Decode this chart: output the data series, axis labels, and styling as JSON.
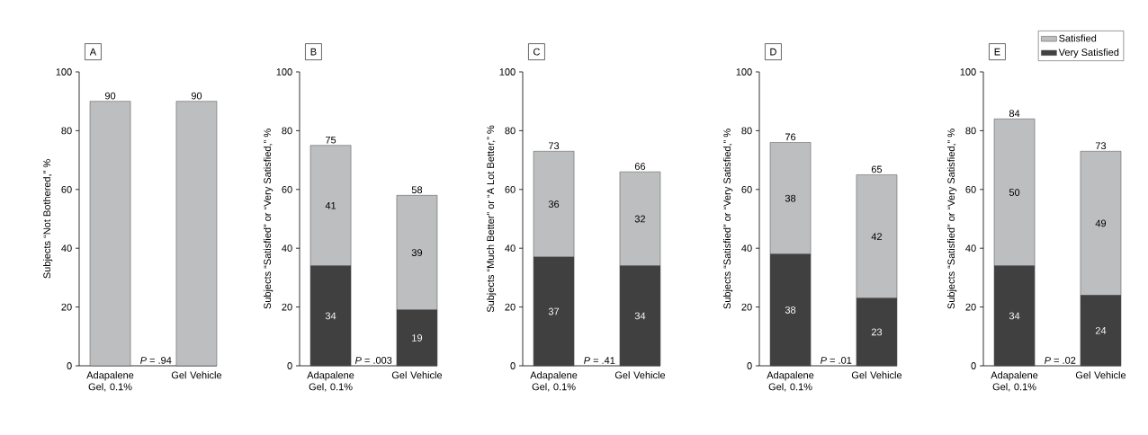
{
  "chart_data": [
    {
      "type": "bar",
      "title": "A",
      "ylabel": "Subjects “Not Bothered,” %",
      "categories": [
        "Adapalene Gel, 0.1%",
        "Gel Vehicle"
      ],
      "ylim": [
        0,
        100
      ],
      "yticks": [
        0,
        20,
        40,
        60,
        80,
        100
      ],
      "data_labels": true,
      "annotations": [
        "*P* = .94"
      ],
      "series": [
        {
          "color": "#bdbec0",
          "values": [
            90,
            90
          ]
        }
      ]
    },
    {
      "type": "bar",
      "title": "B",
      "ylabel": "Subjects “Satisfied” or “Very Satisfied,” %",
      "categories": [
        "Adapalene Gel, 0.1%",
        "Gel Vehicle"
      ],
      "ylim": [
        0,
        100
      ],
      "yticks": [
        0,
        20,
        40,
        60,
        80,
        100
      ],
      "stacked": true,
      "data_labels": true,
      "totals": [
        "75",
        "58"
      ],
      "annotations": [
        "*P* = .003"
      ],
      "series": [
        {
          "color": "#404040",
          "values": [
            34,
            19
          ]
        },
        {
          "color": "#bdbec0",
          "values": [
            41,
            39
          ]
        }
      ]
    },
    {
      "type": "bar",
      "title": "C",
      "ylabel": "Subjects “Much Better” or “A Lot Better,” %",
      "categories": [
        "Adapalene Gel, 0.1%",
        "Gel Vehicle"
      ],
      "ylim": [
        0,
        100
      ],
      "yticks": [
        0,
        20,
        40,
        60,
        80,
        100
      ],
      "stacked": true,
      "data_labels": true,
      "totals": [
        "73",
        "66"
      ],
      "annotations": [
        "*P* = .41"
      ],
      "series": [
        {
          "color": "#404040",
          "values": [
            37,
            34
          ]
        },
        {
          "color": "#bdbec0",
          "values": [
            36,
            32
          ]
        }
      ]
    },
    {
      "type": "bar",
      "title": "D",
      "ylabel": "Subjects “Satisfied” or “Very Satisfied,” %",
      "categories": [
        "Adapalene Gel, 0.1%",
        "Gel Vehicle"
      ],
      "ylim": [
        0,
        100
      ],
      "yticks": [
        0,
        20,
        40,
        60,
        80,
        100
      ],
      "stacked": true,
      "data_labels": true,
      "totals": [
        "76",
        "65"
      ],
      "annotations": [
        "*P* = .01"
      ],
      "series": [
        {
          "color": "#404040",
          "values": [
            38,
            23
          ]
        },
        {
          "color": "#bdbec0",
          "values": [
            38,
            42
          ]
        }
      ]
    },
    {
      "type": "bar",
      "title": "E",
      "ylabel": "Subjects “Satisfied” or “Very Satisfied,” %",
      "categories": [
        "Adapalene Gel, 0.1%",
        "Gel Vehicle"
      ],
      "ylim": [
        0,
        100
      ],
      "yticks": [
        0,
        20,
        40,
        60,
        80,
        100
      ],
      "stacked": true,
      "data_labels": true,
      "totals": [
        "84",
        "73"
      ],
      "annotations": [
        "*P* = .02"
      ],
      "legend": "top right",
      "series": [
        {
          "name": "Very Satisfied",
          "color": "#404040",
          "values": [
            34,
            24
          ]
        },
        {
          "name": "Satisfied",
          "color": "#bdbec0",
          "values": [
            50,
            49
          ]
        }
      ]
    }
  ]
}
